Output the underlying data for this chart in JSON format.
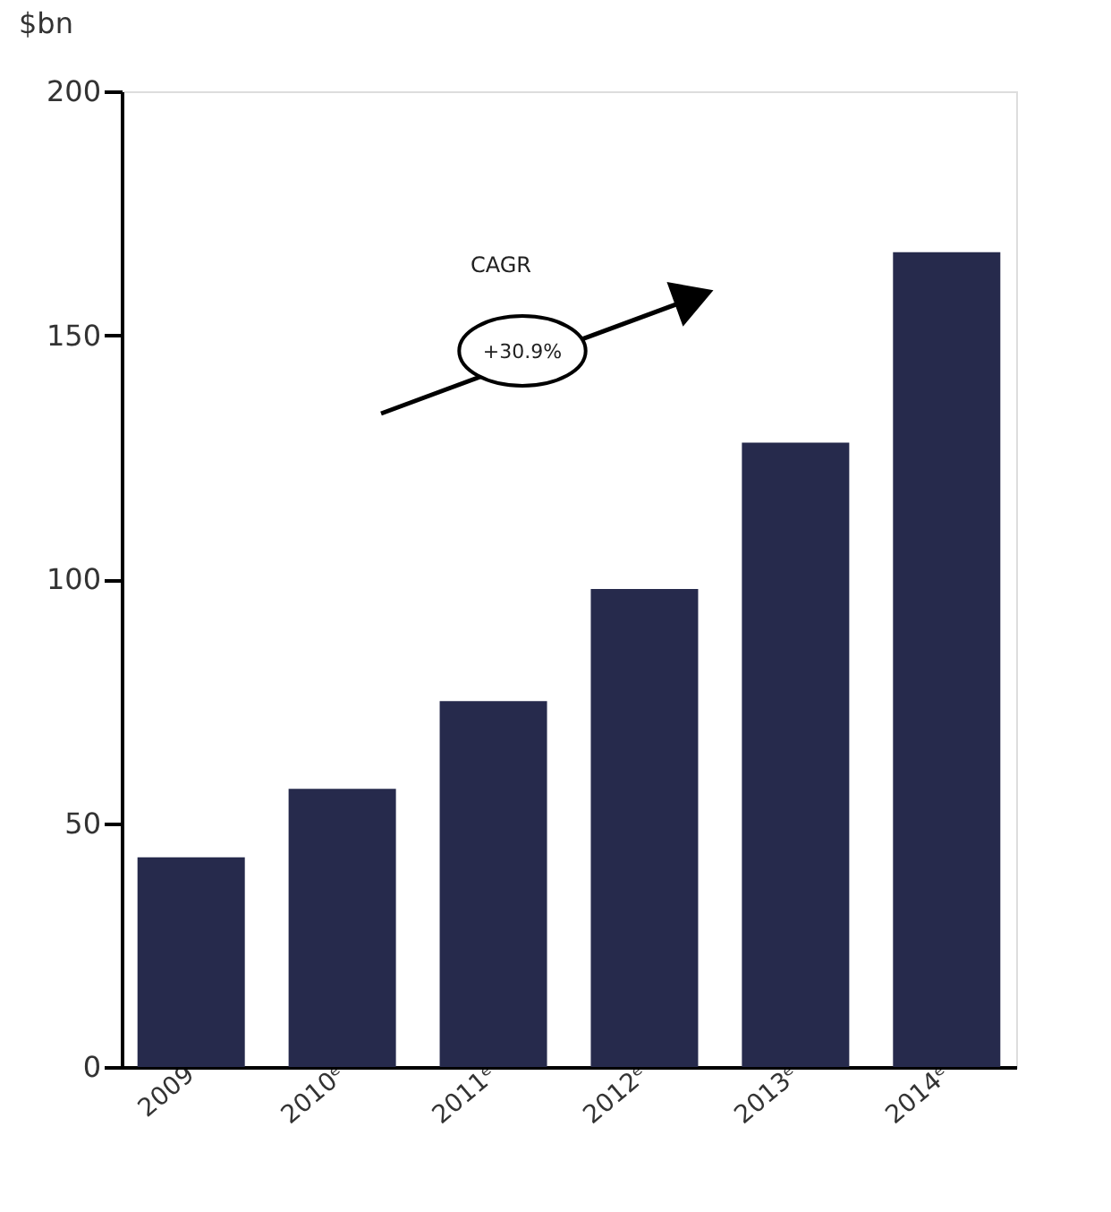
{
  "chart_data": {
    "type": "bar",
    "ylabel": "$bn",
    "categories": [
      "2009",
      "2010ᵉ",
      "2011ᵉ",
      "2012ᵉ",
      "2013ᵉ",
      "2014ᵉ"
    ],
    "values": [
      43,
      57,
      75,
      98,
      128,
      167
    ],
    "color": "#262a4c",
    "ylim": [
      0,
      200
    ],
    "yticks": [
      0,
      50,
      100,
      150,
      200
    ],
    "grid": false,
    "annotations": [
      "CAGR",
      "+30.9%"
    ]
  }
}
